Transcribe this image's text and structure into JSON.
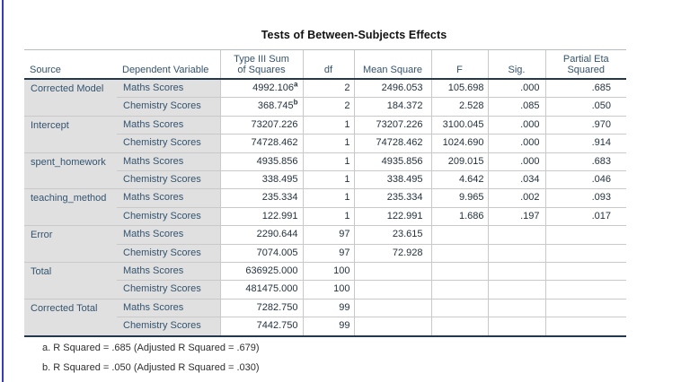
{
  "colors": {
    "left_border": "#3b3bb8",
    "header_text": "#33536f",
    "value_text": "#24323f",
    "label_bg": "#e0e0e0",
    "grid": "#c9c9c9",
    "frame": "#24384d"
  },
  "table": {
    "title": "Tests of Between-Subjects Effects",
    "headers": [
      {
        "id": "source",
        "label": "Source"
      },
      {
        "id": "dependent-variable",
        "label": "Dependent Variable"
      },
      {
        "id": "type-iii-sum-of-squares",
        "label": "Type III Sum\nof Squares"
      },
      {
        "id": "df",
        "label": "df"
      },
      {
        "id": "mean-square",
        "label": "Mean Square"
      },
      {
        "id": "f",
        "label": "F"
      },
      {
        "id": "sig",
        "label": "Sig."
      },
      {
        "id": "partial-eta-squared",
        "label": "Partial Eta\nSquared"
      }
    ],
    "groups": [
      {
        "source": "Corrected Model",
        "rows": [
          {
            "dep": "Maths Scores",
            "ss": "4992.106",
            "ss_sup": "a",
            "df": "2",
            "ms": "2496.053",
            "f": "105.698",
            "sig": ".000",
            "pes": ".685"
          },
          {
            "dep": "Chemistry Scores",
            "ss": "368.745",
            "ss_sup": "b",
            "df": "2",
            "ms": "184.372",
            "f": "2.528",
            "sig": ".085",
            "pes": ".050"
          }
        ]
      },
      {
        "source": "Intercept",
        "rows": [
          {
            "dep": "Maths Scores",
            "ss": "73207.226",
            "df": "1",
            "ms": "73207.226",
            "f": "3100.045",
            "sig": ".000",
            "pes": ".970"
          },
          {
            "dep": "Chemistry Scores",
            "ss": "74728.462",
            "df": "1",
            "ms": "74728.462",
            "f": "1024.690",
            "sig": ".000",
            "pes": ".914"
          }
        ]
      },
      {
        "source": "spent_homework",
        "rows": [
          {
            "dep": "Maths Scores",
            "ss": "4935.856",
            "df": "1",
            "ms": "4935.856",
            "f": "209.015",
            "sig": ".000",
            "pes": ".683"
          },
          {
            "dep": "Chemistry Scores",
            "ss": "338.495",
            "df": "1",
            "ms": "338.495",
            "f": "4.642",
            "sig": ".034",
            "pes": ".046"
          }
        ]
      },
      {
        "source": "teaching_method",
        "rows": [
          {
            "dep": "Maths Scores",
            "ss": "235.334",
            "df": "1",
            "ms": "235.334",
            "f": "9.965",
            "sig": ".002",
            "pes": ".093"
          },
          {
            "dep": "Chemistry Scores",
            "ss": "122.991",
            "df": "1",
            "ms": "122.991",
            "f": "1.686",
            "sig": ".197",
            "pes": ".017"
          }
        ]
      },
      {
        "source": "Error",
        "rows": [
          {
            "dep": "Maths Scores",
            "ss": "2290.644",
            "df": "97",
            "ms": "23.615",
            "f": "",
            "sig": "",
            "pes": ""
          },
          {
            "dep": "Chemistry Scores",
            "ss": "7074.005",
            "df": "97",
            "ms": "72.928",
            "f": "",
            "sig": "",
            "pes": ""
          }
        ]
      },
      {
        "source": "Total",
        "rows": [
          {
            "dep": "Maths Scores",
            "ss": "636925.000",
            "df": "100",
            "ms": "",
            "f": "",
            "sig": "",
            "pes": ""
          },
          {
            "dep": "Chemistry Scores",
            "ss": "481475.000",
            "df": "100",
            "ms": "",
            "f": "",
            "sig": "",
            "pes": ""
          }
        ]
      },
      {
        "source": "Corrected Total",
        "rows": [
          {
            "dep": "Maths Scores",
            "ss": "7282.750",
            "df": "99",
            "ms": "",
            "f": "",
            "sig": "",
            "pes": ""
          },
          {
            "dep": "Chemistry Scores",
            "ss": "7442.750",
            "df": "99",
            "ms": "",
            "f": "",
            "sig": "",
            "pes": ""
          }
        ]
      }
    ],
    "footnotes": [
      "a. R Squared = .685 (Adjusted R Squared = .679)",
      "b. R Squared = .050 (Adjusted R Squared = .030)"
    ]
  }
}
